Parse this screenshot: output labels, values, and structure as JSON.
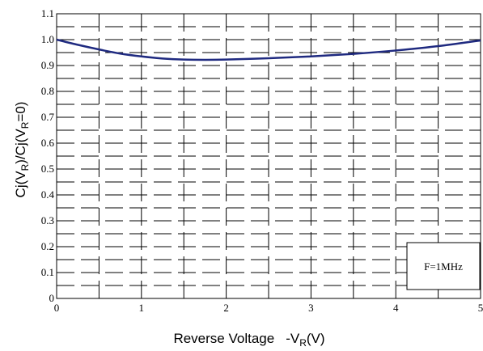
{
  "chart_data": {
    "type": "line",
    "xlabel_main": "Reverse Voltage",
    "xlabel_var": "-V",
    "xlabel_sub": "R",
    "xlabel_unit": "(V)",
    "ylabel": {
      "p1": "Cj(V",
      "s1": "R",
      "p2": ")/Cj(V",
      "s2": "R",
      "p3": "=0)"
    },
    "xlim": [
      0,
      5
    ],
    "ylim": [
      0,
      1.1
    ],
    "x_ticks": [
      "0",
      "1",
      "2",
      "3",
      "4",
      "5"
    ],
    "y_ticks": [
      "0",
      "0.1",
      "0.2",
      "0.3",
      "0.4",
      "0.5",
      "0.6",
      "0.7",
      "0.8",
      "0.9",
      "1.0",
      "1.1"
    ],
    "grid": true,
    "legend_text": "F=1MHz",
    "legend_placement": "bottom-right",
    "series": [
      {
        "color": "#1f2a80",
        "x": [
          0,
          0.25,
          0.5,
          0.75,
          1.0,
          1.25,
          1.5,
          1.75,
          2.0,
          2.5,
          3.0,
          3.5,
          4.0,
          4.5,
          5.0
        ],
        "y": [
          1.0,
          0.98,
          0.962,
          0.946,
          0.935,
          0.927,
          0.923,
          0.922,
          0.923,
          0.928,
          0.935,
          0.945,
          0.958,
          0.975,
          0.997
        ]
      }
    ]
  }
}
